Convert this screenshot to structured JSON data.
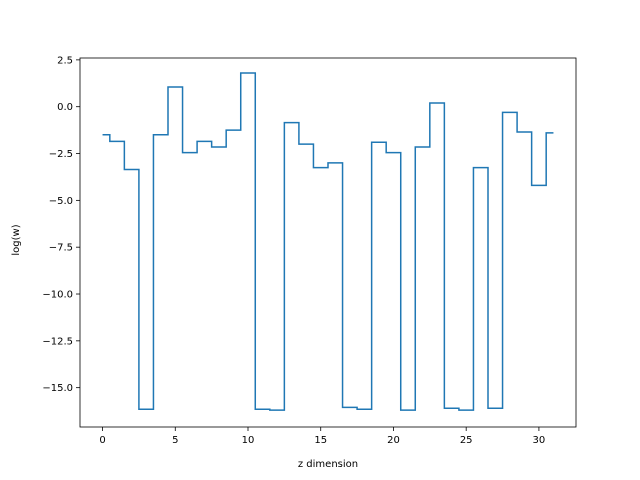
{
  "chart_data": {
    "type": "line",
    "drawstyle": "steps-mid",
    "title": "",
    "xlabel": "z dimension",
    "ylabel": "log(w)",
    "xlim": [
      -1.55,
      32.55
    ],
    "ylim": [
      -17.1,
      2.6
    ],
    "xticks": [
      0,
      5,
      10,
      15,
      20,
      25,
      30
    ],
    "yticks": [
      2.5,
      0.0,
      -2.5,
      -5.0,
      -7.5,
      -10.0,
      -12.5,
      -15.0
    ],
    "ytick_labels": [
      "2.5",
      "0.0",
      "−2.5",
      "−5.0",
      "−7.5",
      "−10.0",
      "−12.5",
      "−15.0"
    ],
    "grid": false,
    "legend": "none",
    "series": [
      {
        "color": "#1f77b4",
        "x": [
          0,
          1,
          2,
          3,
          4,
          5,
          6,
          7,
          8,
          9,
          10,
          11,
          12,
          13,
          14,
          15,
          16,
          17,
          18,
          19,
          20,
          21,
          22,
          23,
          24,
          25,
          26,
          27,
          28,
          29,
          30,
          31
        ],
        "y": [
          -1.5,
          -1.85,
          -3.35,
          -16.15,
          -1.5,
          1.05,
          -2.45,
          -1.85,
          -2.15,
          -1.25,
          1.8,
          -16.15,
          -16.2,
          -0.85,
          -2.0,
          -3.25,
          -3.0,
          -16.05,
          -16.15,
          -1.9,
          -2.45,
          -16.2,
          -2.15,
          0.2,
          -16.1,
          -16.2,
          -3.25,
          -16.1,
          -0.3,
          -1.35,
          -4.2,
          -1.4
        ]
      }
    ]
  }
}
